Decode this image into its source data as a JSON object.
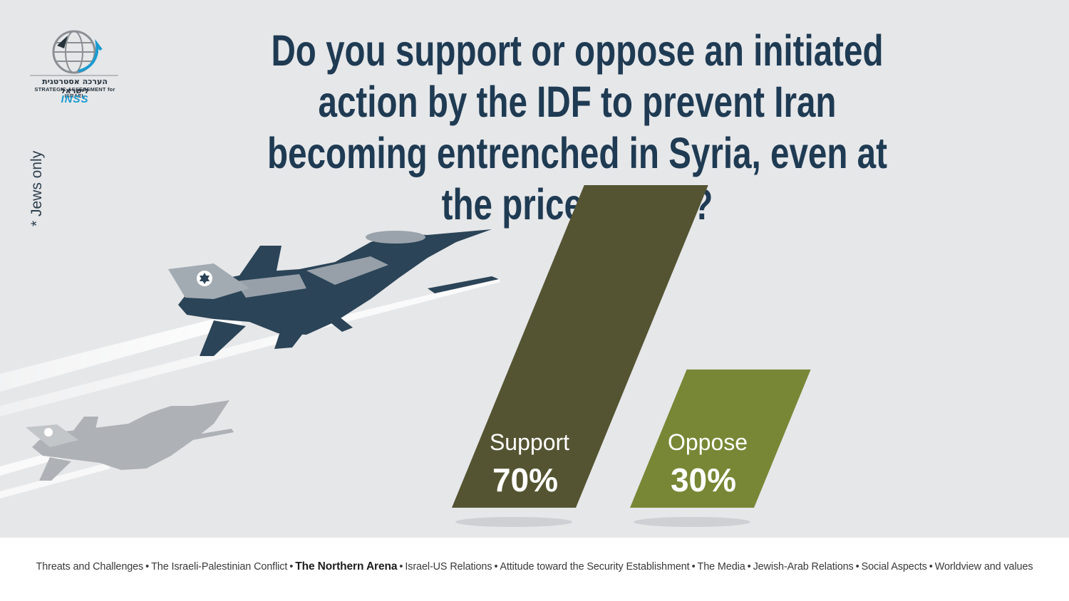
{
  "header": {
    "title": "Do you support or oppose an initiated action by the IDF to prevent Iran becoming entrenched in Syria, even at the price of war?",
    "note": "* Jews only"
  },
  "logo": {
    "hebrew": "הערכה אסטרטגית לישראל",
    "english": "STRATEGIC ASSESSMENT for ISRAEL",
    "brand": "INSS"
  },
  "chart_data": {
    "type": "bar",
    "categories": [
      "Support",
      "Oppose"
    ],
    "values": [
      70,
      30
    ],
    "value_labels": [
      "70%",
      "30%"
    ],
    "unit": "%",
    "ylim": [
      0,
      100
    ],
    "colors": [
      "#545432",
      "#778735"
    ],
    "grid": false,
    "legend": "none"
  },
  "footer": {
    "items": [
      {
        "label": "Threats and Challenges",
        "active": false
      },
      {
        "label": "The Israeli-Palestinian Conflict",
        "active": false
      },
      {
        "label": "The Northern  Arena",
        "active": true
      },
      {
        "label": "Israel-US Relations",
        "active": false
      },
      {
        "label": "Attitude toward the Security Establishment",
        "active": false
      },
      {
        "label": "The Media",
        "active": false
      },
      {
        "label": "Jewish-Arab Relations",
        "active": false
      },
      {
        "label": "Social Aspects",
        "active": false
      },
      {
        "label": "Worldview and values",
        "active": false
      }
    ],
    "separator": "•"
  },
  "colors": {
    "background": "#e6e7e9",
    "title": "#1f3b53",
    "jet_dark": "#2b4457",
    "jet_ghost": "#aeb2b6"
  }
}
